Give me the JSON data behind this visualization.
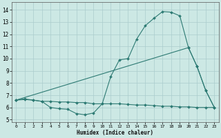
{
  "xlabel": "Humidex (Indice chaleur)",
  "xlim": [
    -0.5,
    23.5
  ],
  "ylim": [
    4.8,
    14.6
  ],
  "yticks": [
    5,
    6,
    7,
    8,
    9,
    10,
    11,
    12,
    13,
    14
  ],
  "xticks": [
    0,
    1,
    2,
    3,
    4,
    5,
    6,
    7,
    8,
    9,
    10,
    11,
    12,
    13,
    14,
    15,
    16,
    17,
    18,
    19,
    20,
    21,
    22,
    23
  ],
  "bg_color": "#cce8e4",
  "grid_color": "#aacccc",
  "line_color": "#2d7a73",
  "series_max": {
    "x": [
      0,
      1,
      2,
      3,
      4,
      5,
      6,
      7,
      8,
      9,
      10,
      11,
      12,
      13,
      14,
      15,
      16,
      17,
      18,
      19,
      20,
      21,
      22,
      23
    ],
    "y": [
      6.6,
      6.7,
      6.6,
      6.5,
      6.0,
      5.9,
      5.85,
      5.5,
      5.4,
      5.55,
      6.3,
      8.55,
      9.9,
      10.0,
      11.6,
      12.7,
      13.3,
      13.85,
      13.8,
      13.5,
      10.9,
      9.35,
      7.4,
      6.0
    ]
  },
  "series_avg": {
    "x": [
      0,
      20,
      21,
      22,
      23
    ],
    "y": [
      6.6,
      10.9,
      9.35,
      7.4,
      6.0
    ]
  },
  "series_min": {
    "x": [
      0,
      1,
      2,
      3,
      4,
      5,
      6,
      7,
      8,
      9,
      10,
      11,
      12,
      13,
      14,
      15,
      16,
      17,
      18,
      19,
      20,
      21,
      22,
      23
    ],
    "y": [
      6.6,
      6.65,
      6.6,
      6.5,
      6.5,
      6.45,
      6.45,
      6.4,
      6.4,
      6.3,
      6.3,
      6.3,
      6.3,
      6.25,
      6.2,
      6.2,
      6.15,
      6.1,
      6.1,
      6.05,
      6.05,
      6.0,
      6.0,
      6.0
    ]
  }
}
